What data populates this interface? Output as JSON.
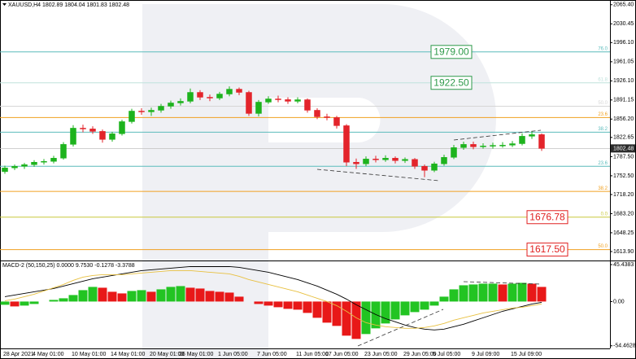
{
  "chart_data": {
    "type": "candlestick",
    "title": "XAUUSD,H4  1802.89 1804.04 1801.83 1802.48",
    "categories": [
      "28 Apr 2021",
      null,
      null,
      "4 May 01:00",
      null,
      null,
      null,
      "10 May 01:00",
      null,
      null,
      null,
      "14 May 01:00",
      null,
      null,
      null,
      "20 May 01:00",
      null,
      null,
      "26 May 01:00",
      null,
      null,
      null,
      "1 Jun 05:00",
      null,
      null,
      null,
      "7 Jun 05:00",
      null,
      null,
      null,
      "11 Jun 05:00",
      null,
      null,
      "17 Jun 05:00",
      null,
      null,
      null,
      "23 Jun 05:00",
      null,
      null,
      null,
      "29 Jun 05:00",
      null,
      null,
      "5 Jul 05:00",
      null,
      null,
      null,
      "9 Jul 09:00",
      null,
      null,
      null,
      "15 Jul 09:00",
      null,
      null,
      null
    ],
    "candles": [
      [
        1760,
        1771,
        1756,
        1766.9
      ],
      [
        1766.9,
        1773,
        1763,
        1769.8
      ],
      [
        1769.8,
        1776,
        1765,
        1772.8
      ],
      [
        1772.8,
        1781,
        1769,
        1777.3
      ],
      [
        1777.3,
        1783,
        1773,
        1778.8
      ],
      [
        1778.8,
        1789,
        1775,
        1784.7
      ],
      [
        1784.7,
        1814,
        1782,
        1809.9
      ],
      [
        1809.9,
        1845,
        1806,
        1839.6
      ],
      [
        1839.6,
        1846,
        1832,
        1838.2
      ],
      [
        1838.2,
        1843,
        1829,
        1833.7
      ],
      [
        1833.7,
        1837,
        1813,
        1818.9
      ],
      [
        1818.9,
        1833,
        1815,
        1829.3
      ],
      [
        1829.3,
        1855,
        1826,
        1851.5
      ],
      [
        1851.5,
        1875,
        1848,
        1870.8
      ],
      [
        1870.8,
        1876,
        1864,
        1869.4
      ],
      [
        1869.4,
        1877,
        1862,
        1872.3
      ],
      [
        1872.3,
        1884,
        1868,
        1879.7
      ],
      [
        1879.7,
        1890,
        1875,
        1885.7
      ],
      [
        1885.7,
        1894,
        1881,
        1888.7
      ],
      [
        1888.7,
        1912,
        1885,
        1905.0
      ],
      [
        1905.0,
        1909,
        1891,
        1896.1
      ],
      [
        1896.1,
        1901,
        1889,
        1894.6
      ],
      [
        1894.6,
        1906,
        1891,
        1902.0
      ],
      [
        1902.0,
        1916,
        1898,
        1910.9
      ],
      [
        1910.9,
        1914,
        1900,
        1905.0
      ],
      [
        1905.0,
        1908,
        1862,
        1866.4
      ],
      [
        1866.4,
        1891,
        1861,
        1887.2
      ],
      [
        1887.2,
        1898,
        1884,
        1893.1
      ],
      [
        1893.1,
        1899,
        1887,
        1891.8
      ],
      [
        1891.8,
        1896,
        1884,
        1888.7
      ],
      [
        1888.7,
        1896,
        1885,
        1891.6
      ],
      [
        1891.6,
        1894,
        1868,
        1872.3
      ],
      [
        1872.3,
        1876,
        1856,
        1860.4
      ],
      [
        1860.4,
        1866,
        1854,
        1859.0
      ],
      [
        1859.0,
        1862,
        1839,
        1844.1
      ],
      [
        1844.1,
        1847,
        1770,
        1777.3
      ],
      [
        1777.3,
        1784,
        1765,
        1774.3
      ],
      [
        1774.3,
        1788,
        1770,
        1783.2
      ],
      [
        1783.2,
        1789,
        1777,
        1781.7
      ],
      [
        1781.7,
        1790,
        1778,
        1784.7
      ],
      [
        1784.7,
        1788,
        1775,
        1780.2
      ],
      [
        1780.2,
        1786,
        1776,
        1782.5
      ],
      [
        1782.5,
        1785,
        1765,
        1769.8
      ],
      [
        1769.8,
        1773,
        1750,
        1762.4
      ],
      [
        1762.4,
        1778,
        1759,
        1774.3
      ],
      [
        1774.3,
        1791,
        1771,
        1786.2
      ],
      [
        1786.2,
        1809,
        1783,
        1804.0
      ],
      [
        1804.0,
        1815,
        1800,
        1809.9
      ],
      [
        1809.9,
        1815,
        1801,
        1805.5
      ],
      [
        1805.5,
        1812,
        1802,
        1807.0
      ],
      [
        1807.0,
        1813,
        1802,
        1808.1
      ],
      [
        1808.1,
        1814,
        1804,
        1808.5
      ],
      [
        1808.5,
        1816,
        1805,
        1811.2
      ],
      [
        1811.2,
        1830,
        1808,
        1824.8
      ],
      [
        1824.8,
        1834,
        1820,
        1827.8
      ],
      [
        1827.8,
        1830,
        1798,
        1802.48
      ]
    ],
    "up_color": "#1db31d",
    "down_color": "#e3242b",
    "ylim": [
      1599,
      2074
    ],
    "yticks": [
      {
        "value": 2065.4,
        "label": "2065.40"
      },
      {
        "value": 2030.45,
        "label": "2030.45"
      },
      {
        "value": 1996.1,
        "label": "1996.10"
      },
      {
        "value": 1961.05,
        "label": "1961.05"
      },
      {
        "value": 1926.1,
        "label": "1926.10"
      },
      {
        "value": 1891.15,
        "label": "1891.15"
      },
      {
        "value": 1856.2,
        "label": "1856.20"
      },
      {
        "value": 1822.65,
        "label": "1822.65"
      },
      {
        "value": 1787.5,
        "label": "1787.50"
      },
      {
        "value": 1752.5,
        "label": "1752.50"
      },
      {
        "value": 1718.2,
        "label": "1718.20"
      },
      {
        "value": 1683.2,
        "label": "1683.20"
      },
      {
        "value": 1648.25,
        "label": "1648.25"
      },
      {
        "value": 1613.9,
        "label": "1613.90"
      }
    ],
    "current_price": 1802.48,
    "levels": [
      {
        "value": 1979,
        "value_label": "1979.00",
        "fib": "76.0",
        "color": "#5cbcbc",
        "box_color": "#2e9a4a"
      },
      {
        "value": 1922.5,
        "value_label": "1922.50",
        "fib": "61.8",
        "color": "#bfe2dc",
        "box_color": "#2e9a4a"
      },
      {
        "value": 1879.7,
        "fib": "50.0",
        "color": "#d6d6d6"
      },
      {
        "value": 1859.0,
        "fib": "23.6",
        "color": "#f0a020"
      },
      {
        "value": 1832.2,
        "fib": "38.2",
        "color": "#5cbcbc"
      },
      {
        "value": 1769.8,
        "fib": "23.6",
        "color": "#5cbcbc"
      },
      {
        "value": 1723.8,
        "fib": "38.2",
        "color": "#f0a020"
      },
      {
        "value": 1676.78,
        "value_label": "1676.78",
        "fib": "0.0",
        "color": "#c8c83c",
        "box_color": "#e02020"
      },
      {
        "value": 1617.5,
        "value_label": "1617.50",
        "fib": "50.0",
        "color": "#f0a020",
        "box_color": "#e02020"
      }
    ],
    "macd": {
      "title": "MACD-2 (50,150,25) 0.0000 9.7530 -0.1278 -3.3788",
      "ylim": [
        -57.7,
        49.5
      ],
      "yticks": [
        45.4383,
        {
          "value": 0,
          "label": "0.00"
        },
        -54.4628
      ],
      "histogram": {
        "values": [
          -4,
          -6,
          -5,
          -3,
          0,
          2,
          4,
          8,
          14,
          18,
          17,
          12,
          10,
          13,
          14,
          12,
          15,
          18,
          19,
          17,
          16,
          13,
          12,
          11,
          6,
          0,
          -3,
          -5,
          -7,
          -9,
          -10,
          -14,
          -20,
          -26,
          -30,
          -42,
          -46,
          -40,
          -33,
          -27,
          -22,
          -17,
          -13,
          -10,
          -5,
          6,
          15,
          20,
          21,
          22,
          22,
          21,
          22,
          23,
          22,
          18
        ],
        "up_color": "#22c422",
        "down_color": "#e81818"
      },
      "lines": [
        {
          "color": "#000000",
          "values": [
            6,
            8,
            10,
            12,
            14,
            16,
            19,
            22,
            25,
            28,
            30,
            32,
            34,
            36,
            38,
            39,
            40,
            41,
            42,
            43,
            43,
            43,
            43,
            43,
            42,
            40,
            38,
            36,
            33,
            30,
            27,
            23,
            19,
            14,
            9,
            3,
            -4,
            -10,
            -16,
            -21,
            -25,
            -29,
            -32,
            -34,
            -35,
            -34,
            -31,
            -28,
            -24,
            -20,
            -16,
            -12,
            -9,
            -6,
            -3,
            -1
          ]
        },
        {
          "color": "#e8c040",
          "values": [
            1,
            3,
            6,
            9,
            13,
            17,
            21,
            26,
            30,
            32,
            33,
            33,
            33,
            34,
            35,
            36,
            37,
            38,
            38,
            38,
            37,
            36,
            35,
            34,
            31,
            27,
            24,
            21,
            18,
            15,
            12,
            8,
            4,
            0,
            -5,
            -12,
            -20,
            -26,
            -29,
            -31,
            -32,
            -33,
            -33,
            -32,
            -30,
            -27,
            -23,
            -20,
            -17,
            -14,
            -12,
            -10,
            -8,
            -7,
            -5,
            -3
          ]
        }
      ]
    }
  }
}
